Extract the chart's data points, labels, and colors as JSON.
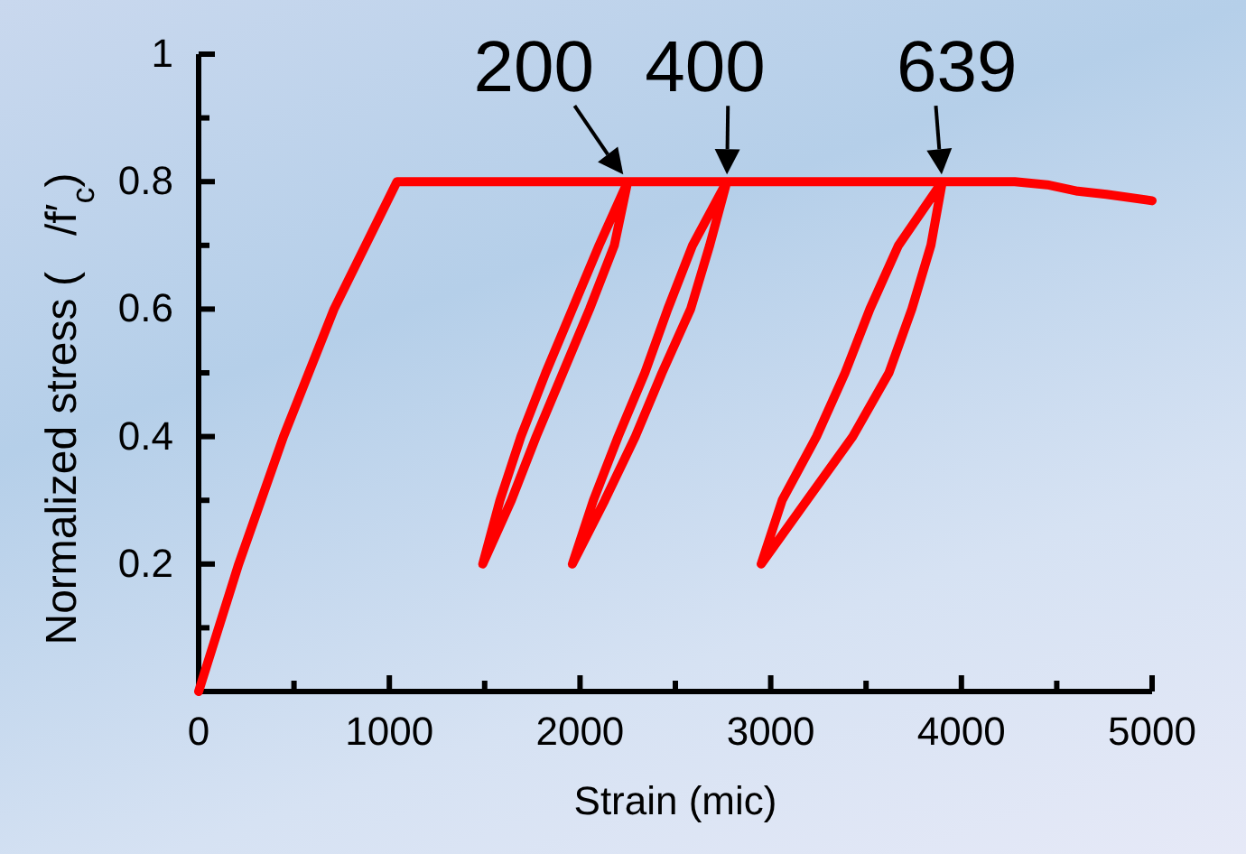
{
  "chart_data": {
    "type": "line",
    "xlabel": "Strain (mic)",
    "ylabel": "Normalized stress (   /f′$_{c}$)",
    "xlim": [
      0,
      5000
    ],
    "ylim": [
      0,
      1
    ],
    "xticks": [
      0,
      {
        "value": 500,
        "label": null
      },
      1000,
      {
        "value": 1500,
        "label": null
      },
      2000,
      {
        "value": 2500,
        "label": null
      },
      3000,
      {
        "value": 3500,
        "label": null
      },
      4000,
      {
        "value": 4500,
        "label": null
      },
      5000
    ],
    "yticks": [
      {
        "value": 0.1,
        "label": null
      },
      0.2,
      {
        "value": 0.3,
        "label": null
      },
      0.4,
      {
        "value": 0.5,
        "label": null
      },
      0.6,
      {
        "value": 0.7,
        "label": null
      },
      0.8,
      {
        "value": 0.9,
        "label": null
      },
      1
    ],
    "grid": false,
    "marker": "none",
    "line_style": "solid",
    "series": [
      {
        "color": "#ff0000",
        "x": [
          0,
          210,
          445,
          710,
          1040,
          2250,
          2180,
          2050,
          1910,
          1770,
          1640,
          1490,
          1580,
          1690,
          1820,
          1960,
          2100,
          2250,
          2770,
          2680,
          2580,
          2430,
          2290,
          2130,
          1960,
          2070,
          2200,
          2340,
          2460,
          2590,
          2770,
          3900,
          3840,
          3740,
          3620,
          3430,
          3190,
          2950,
          3060,
          3240,
          3390,
          3520,
          3670,
          3900,
          4280,
          4450,
          4610,
          4760,
          5000
        ],
        "values": [
          0,
          0.2,
          0.4,
          0.6,
          0.8,
          0.8,
          0.7,
          0.6,
          0.5,
          0.4,
          0.3,
          0.2,
          0.3,
          0.4,
          0.5,
          0.6,
          0.7,
          0.8,
          0.8,
          0.7,
          0.6,
          0.5,
          0.4,
          0.3,
          0.2,
          0.3,
          0.4,
          0.5,
          0.6,
          0.7,
          0.8,
          0.8,
          0.7,
          0.6,
          0.5,
          0.4,
          0.3,
          0.2,
          0.3,
          0.4,
          0.5,
          0.6,
          0.7,
          0.8,
          0.8,
          0.795,
          0.785,
          0.78,
          0.77
        ]
      }
    ],
    "annotations": [
      {
        "text": "200",
        "x": 2250,
        "y": 0.8
      },
      {
        "text": "400",
        "x": 2770,
        "y": 0.8
      },
      {
        "text": "639",
        "x": 3900,
        "y": 0.8
      }
    ]
  }
}
